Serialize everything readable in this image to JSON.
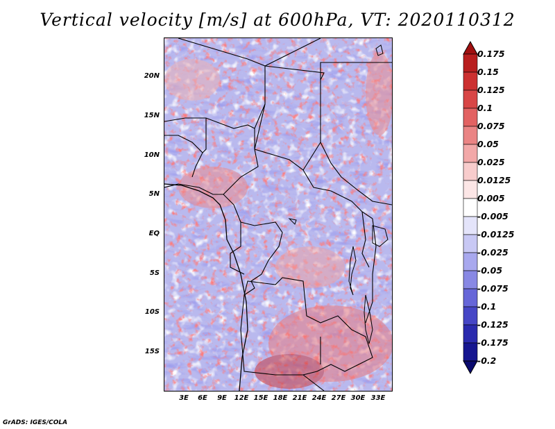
{
  "title": "Vertical velocity [m/s] at 600hPa, VT: 2020110312",
  "lat_labels": [
    "20N",
    "15N",
    "10N",
    "5N",
    "EQ",
    "5S",
    "10S",
    "15S"
  ],
  "lon_labels": [
    "3E",
    "6E",
    "9E",
    "12E",
    "15E",
    "18E",
    "21E",
    "24E",
    "27E",
    "30E",
    "33E"
  ],
  "colorbar": {
    "labels": [
      "0.175",
      "0.15",
      "0.125",
      "0.1",
      "0.075",
      "0.05",
      "0.025",
      "0.0125",
      "0.005",
      "-0.005",
      "-0.0125",
      "-0.025",
      "-0.05",
      "-0.075",
      "-0.1",
      "-0.125",
      "-0.175",
      "-0.2"
    ],
    "colors": [
      "#a01010",
      "#b81e1e",
      "#cc3030",
      "#d84646",
      "#e26262",
      "#ea8484",
      "#f2a8a8",
      "#f8cccc",
      "#fce6e6",
      "#ffffff",
      "#e4e4fa",
      "#c8c8f4",
      "#a8a8ee",
      "#8888e4",
      "#6666d8",
      "#4646c6",
      "#2a2aae",
      "#161690",
      "#0a0a6e"
    ]
  },
  "footer": "GrADS: IGES/COLA"
}
